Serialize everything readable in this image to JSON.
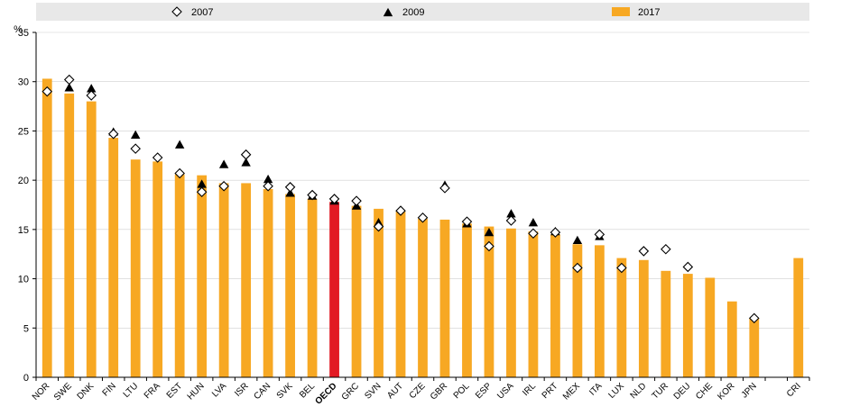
{
  "chart_data": {
    "type": "bar",
    "ylabel": "%",
    "ylim": [
      0,
      35
    ],
    "yticks": [
      0,
      5,
      10,
      15,
      20,
      25,
      30,
      35
    ],
    "grid": "horizontal",
    "legend_position": "top",
    "colors": {
      "bar": "#f7a823",
      "highlight": "#e21a23",
      "marker": "#000000",
      "legend_bg": "#e8e8e8",
      "grid": "#ffffff"
    },
    "highlight_category": "OECD",
    "categories": [
      "NOR",
      "SWE",
      "DNK",
      "FIN",
      "LTU",
      "FRA",
      "EST",
      "HUN",
      "LVA",
      "ISR",
      "CAN",
      "SVK",
      "BEL",
      "OECD",
      "GRC",
      "SVN",
      "AUT",
      "CZE",
      "GBR",
      "POL",
      "ESP",
      "USA",
      "IRL",
      "PRT",
      "MEX",
      "ITA",
      "LUX",
      "NLD",
      "TUR",
      "DEU",
      "CHE",
      "KOR",
      "JPN",
      "",
      "CRI"
    ],
    "series": [
      {
        "name": "2007",
        "marker": "diamond-open",
        "values": [
          29.0,
          30.2,
          28.6,
          24.7,
          23.2,
          22.3,
          20.7,
          18.8,
          19.4,
          22.6,
          19.4,
          19.3,
          18.5,
          18.1,
          17.9,
          15.3,
          16.9,
          16.2,
          19.2,
          15.8,
          13.3,
          15.9,
          14.6,
          14.7,
          11.1,
          14.5,
          11.1,
          12.8,
          13.0,
          11.2,
          null,
          null,
          6.0,
          null,
          null
        ]
      },
      {
        "name": "2009",
        "marker": "triangle-filled",
        "values": [
          null,
          29.4,
          29.3,
          24.9,
          24.6,
          null,
          23.6,
          19.6,
          21.6,
          21.8,
          20.1,
          18.7,
          18.4,
          17.9,
          17.4,
          15.7,
          null,
          null,
          19.5,
          15.6,
          14.7,
          16.6,
          15.7,
          14.8,
          13.9,
          14.3,
          null,
          null,
          null,
          null,
          null,
          null,
          null,
          null,
          null
        ]
      },
      {
        "name": "2017",
        "marker": "bar",
        "values": [
          30.3,
          28.8,
          28.0,
          24.3,
          22.1,
          21.9,
          20.6,
          20.5,
          19.7,
          19.7,
          19.1,
          18.6,
          18.1,
          17.8,
          17.4,
          17.1,
          16.8,
          16.1,
          16.0,
          15.6,
          15.3,
          15.1,
          14.8,
          14.5,
          13.5,
          13.4,
          12.1,
          11.9,
          10.8,
          10.5,
          10.1,
          7.7,
          6.0,
          null,
          12.1
        ]
      }
    ]
  }
}
